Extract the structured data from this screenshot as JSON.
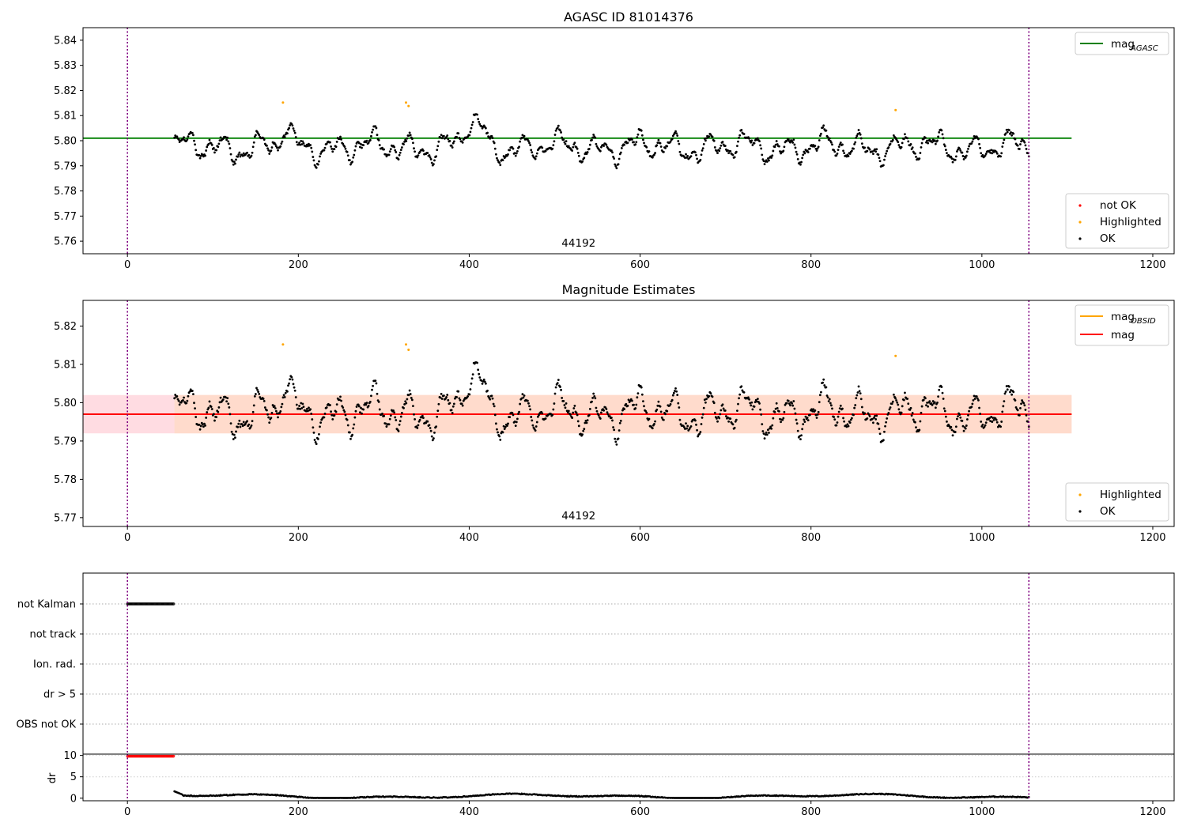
{
  "chart_data": [
    {
      "type": "scatter",
      "title": "AGASC ID 81014376",
      "xlim": [
        -52,
        1225
      ],
      "ylim": [
        5.755,
        5.845
      ],
      "x_ticks": [
        0,
        200,
        400,
        600,
        800,
        1000,
        1200
      ],
      "y_ticks": [
        5.76,
        5.77,
        5.78,
        5.79,
        5.8,
        5.81,
        5.82,
        5.83,
        5.84
      ],
      "vlines": [
        0,
        1055
      ],
      "annotation": "44192",
      "annotation_x": 528,
      "hlines": [
        {
          "name": "mag",
          "subscript": "AGASC",
          "value": 5.801,
          "color": "#008000",
          "x_range": [
            -52,
            1105
          ]
        }
      ],
      "line_legend": {
        "position": "upper right",
        "entries": [
          {
            "name": "mag",
            "subscript": "AGASC",
            "color": "#008000"
          }
        ]
      },
      "point_legend": {
        "position": "lower right",
        "entries": [
          {
            "name": "not OK",
            "color": "#ff0000"
          },
          {
            "name": "Highlighted",
            "color": "#ffa500"
          },
          {
            "name": "OK",
            "color": "#000000"
          }
        ]
      },
      "highlighted_points": [
        {
          "x": 182,
          "y": 5.8152
        },
        {
          "x": 326,
          "y": 5.8152
        },
        {
          "x": 329,
          "y": 5.8138
        },
        {
          "x": 899,
          "y": 5.8122
        }
      ],
      "series": [
        {
          "name": "OK",
          "x_range": [
            55,
            1055
          ],
          "count": 1000,
          "mean": 5.7975,
          "min": 5.7855,
          "max": 5.8105
        }
      ]
    },
    {
      "type": "scatter",
      "title": "Magnitude Estimates",
      "xlim": [
        -52,
        1225
      ],
      "ylim": [
        5.7677,
        5.8267
      ],
      "x_ticks": [
        0,
        200,
        400,
        600,
        800,
        1000,
        1200
      ],
      "y_ticks": [
        5.77,
        5.78,
        5.79,
        5.8,
        5.81,
        5.82
      ],
      "vlines": [
        0,
        1055
      ],
      "annotation": "44192",
      "annotation_x": 528,
      "bands": [
        {
          "ymin": 5.792,
          "ymax": 5.802,
          "color": "#ffc0cb",
          "x_range": [
            -52,
            1105
          ]
        },
        {
          "ymin": 5.792,
          "ymax": 5.802,
          "color": "#ffdab9",
          "x_range": [
            55,
            1105
          ]
        }
      ],
      "hlines": [
        {
          "name": "mag",
          "subscript": "OBSID",
          "value": 5.797,
          "color": "#ffa500",
          "x_range": [
            55,
            1105
          ]
        },
        {
          "name": "mag",
          "value": 5.797,
          "color": "#ff0000",
          "x_range": [
            -52,
            1105
          ]
        }
      ],
      "line_legend": {
        "position": "upper right",
        "entries": [
          {
            "name": "mag",
            "subscript": "OBSID",
            "color": "#ffa500"
          },
          {
            "name": "mag",
            "color": "#ff0000"
          }
        ]
      },
      "point_legend": {
        "position": "lower right",
        "entries": [
          {
            "name": "Highlighted",
            "color": "#ffa500"
          },
          {
            "name": "OK",
            "color": "#000000"
          }
        ]
      },
      "highlighted_points": [
        {
          "x": 182,
          "y": 5.8152
        },
        {
          "x": 326,
          "y": 5.8152
        },
        {
          "x": 329,
          "y": 5.8138
        },
        {
          "x": 899,
          "y": 5.8122
        }
      ],
      "series": [
        {
          "name": "OK",
          "x_range": [
            55,
            1055
          ],
          "count": 1000,
          "mean": 5.7975,
          "min": 5.7855,
          "max": 5.8105
        }
      ]
    },
    {
      "type": "scatter",
      "xlim": [
        -52,
        1225
      ],
      "categories": [
        "not Kalman",
        "not track",
        "Ion. rad.",
        "dr > 5",
        "OBS not OK"
      ],
      "vlines": [
        0,
        1055
      ],
      "flags": [
        {
          "category": "not Kalman",
          "x_range": [
            0,
            54
          ]
        }
      ]
    },
    {
      "type": "scatter",
      "ylabel": "dr",
      "xlim": [
        -52,
        1225
      ],
      "ylim": [
        -0.6,
        10.3
      ],
      "x_ticks": [
        0,
        200,
        400,
        600,
        800,
        1000,
        1200
      ],
      "y_ticks": [
        0,
        5,
        10
      ],
      "vlines": [
        0,
        1055
      ],
      "clipped_points": {
        "x_range": [
          0,
          54
        ],
        "value": 10,
        "color": "#ff0000"
      },
      "series": [
        {
          "name": "dr",
          "x_range": [
            55,
            1055
          ],
          "typical_range": [
            0.1,
            1.3
          ]
        }
      ]
    }
  ]
}
